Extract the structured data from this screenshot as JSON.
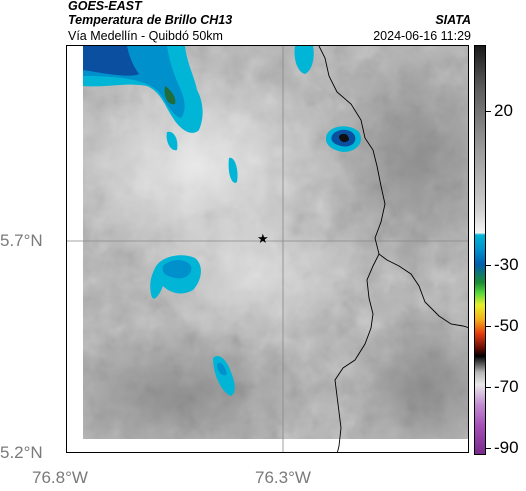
{
  "header": {
    "satellite": "GOES-EAST",
    "product": "Temperatura de Brillo CH13",
    "route": "Vía Medellín - Quibdó 50km",
    "organization": "SIATA",
    "timestamp": "2024-06-16 11:29"
  },
  "map": {
    "latitude_labels": [
      "5.7°N",
      "5.2°N"
    ],
    "longitude_labels": [
      "76.8°W",
      "76.3°W"
    ],
    "marker_icon": "star-icon"
  },
  "colorbar": {
    "tick_labels": [
      "20",
      "-30",
      "-50",
      "-70",
      "-90"
    ],
    "colors": {
      "warm_gray": "#9a9a9a",
      "cyan": "#00b5d6",
      "blue": "#005fae",
      "green": "#55d83d",
      "yellow": "#e8ef2a",
      "red": "#e53b10",
      "black": "#000000",
      "magenta": "#a650b8"
    }
  }
}
